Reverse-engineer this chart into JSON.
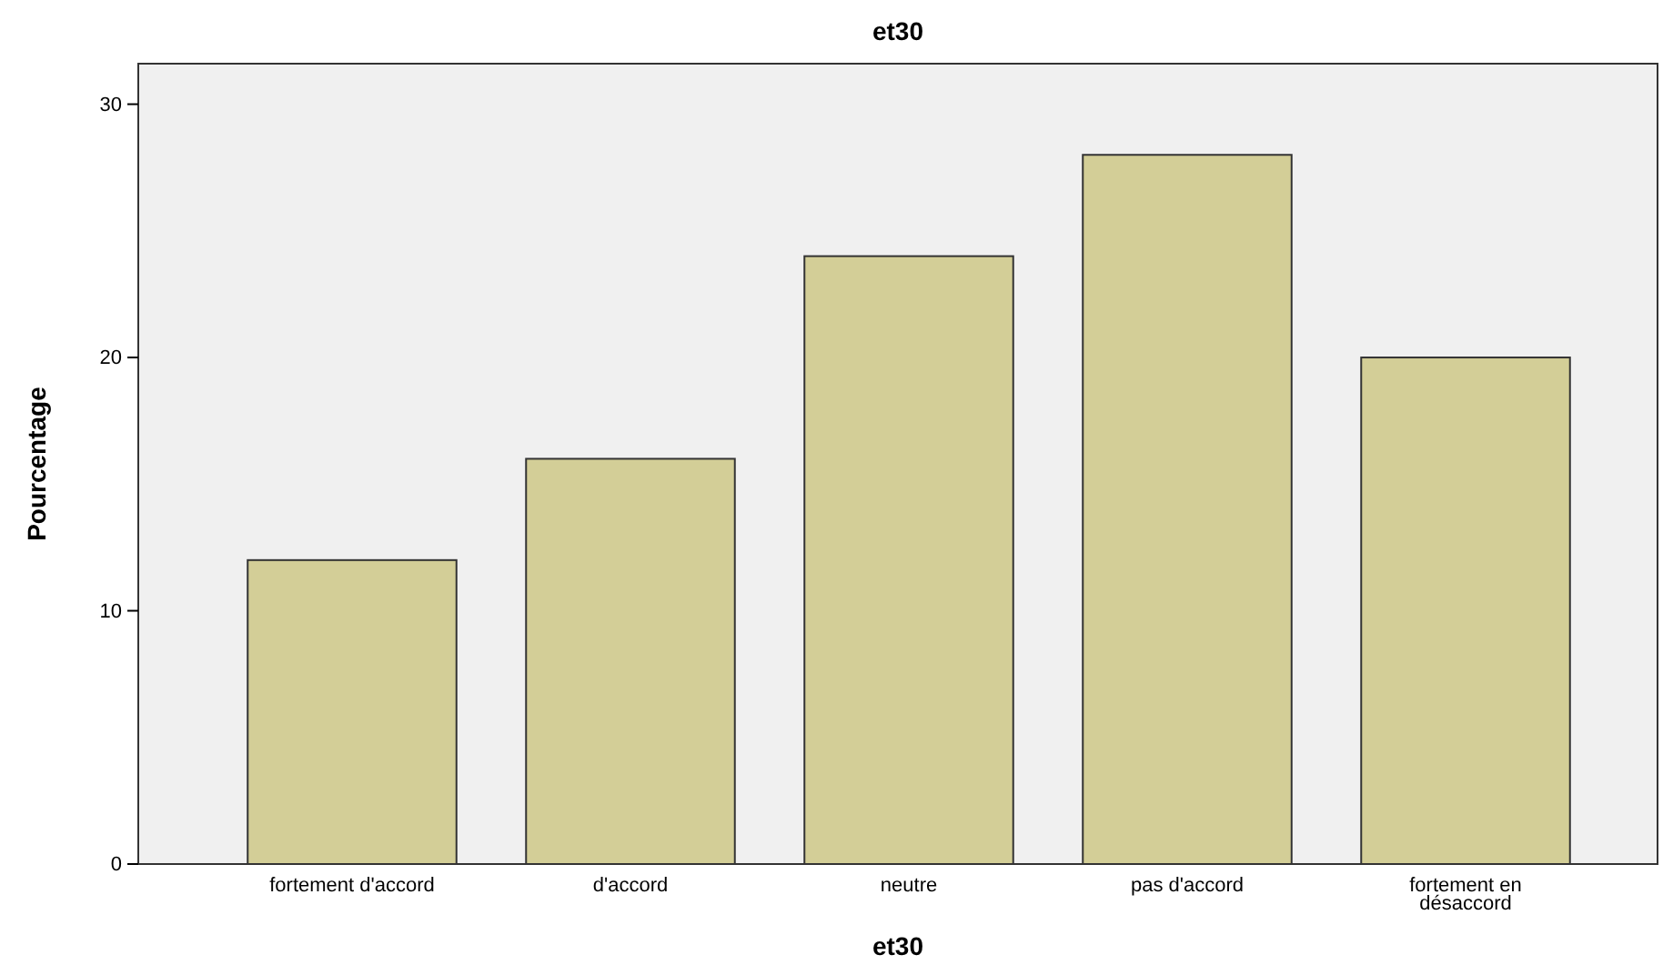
{
  "chart_data": {
    "type": "bar",
    "title": "et30",
    "xlabel": "et30",
    "ylabel": "Pourcentage",
    "categories": [
      "fortement d'accord",
      "d'accord",
      "neutre",
      "pas d'accord",
      "fortement en désaccord"
    ],
    "values": [
      12,
      16,
      24,
      28,
      20
    ],
    "color": "#d3ce97",
    "ylim": [
      0,
      31.6
    ],
    "yticks": [
      0,
      10,
      20,
      30
    ],
    "grid": false,
    "legend": false
  }
}
